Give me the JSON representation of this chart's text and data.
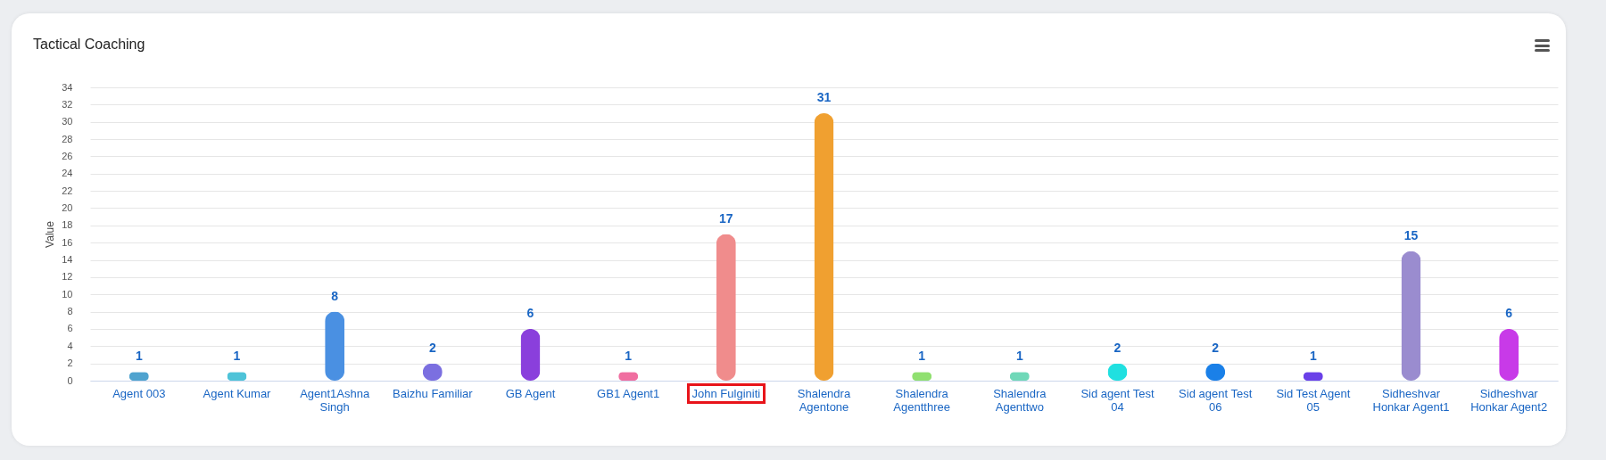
{
  "chart_data": {
    "type": "bar",
    "title": "Tactical Coaching",
    "ylabel": "Value",
    "categories": [
      "Agent 003",
      "Agent Kumar",
      "Agent1Ashna Singh",
      "Baizhu Familiar",
      "GB Agent",
      "GB1 Agent1",
      "John Fulginiti",
      "Shalendra Agentone",
      "Shalendra Agentthree",
      "Shalendra Agenttwo",
      "Sid agent Test 04",
      "Sid agent Test 06",
      "Sid Test Agent 05",
      "Sidheshvar Honkar Agent1",
      "Sidheshvar Honkar Agent2"
    ],
    "values": [
      1,
      1,
      8,
      2,
      6,
      1,
      17,
      31,
      1,
      1,
      2,
      2,
      1,
      15,
      6
    ],
    "colors": [
      "#4fa3cf",
      "#4ec3d8",
      "#4a90e2",
      "#7b6fe0",
      "#8a3fdc",
      "#f06ea0",
      "#f08c8c",
      "#f0a030",
      "#90e070",
      "#6fd8b8",
      "#20e0e0",
      "#1a80e8",
      "#6a40e8",
      "#9a8ccf",
      "#c83ae8"
    ],
    "ylim": [
      0,
      34
    ],
    "yticks": [
      0,
      2,
      4,
      6,
      8,
      10,
      12,
      14,
      16,
      18,
      20,
      22,
      24,
      26,
      28,
      30,
      32,
      34
    ],
    "grid": "y",
    "data_labels": true
  }
}
